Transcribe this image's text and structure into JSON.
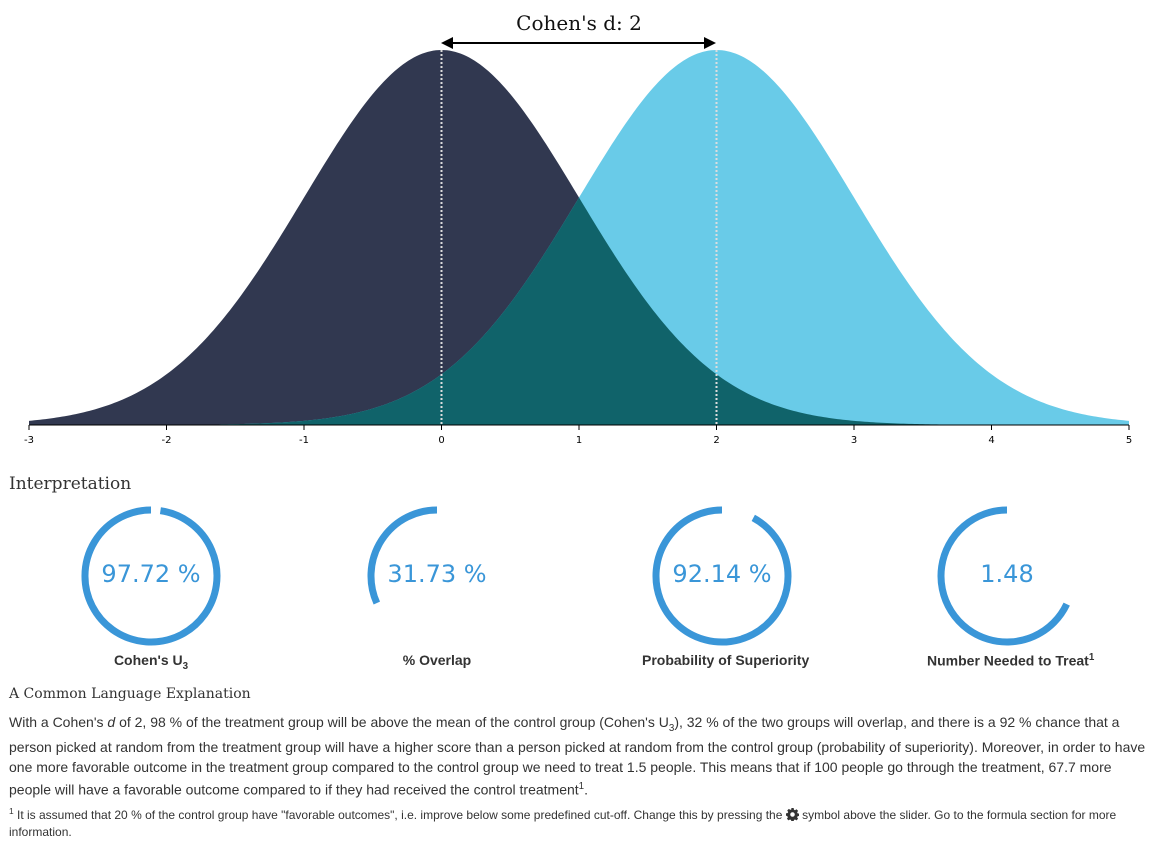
{
  "chart_data": {
    "type": "area",
    "title": "Cohen's d: 2",
    "xlim": [
      -3,
      5
    ],
    "ticks": [
      "-3",
      "-2",
      "-1",
      "0",
      "1",
      "2",
      "3",
      "4",
      "5"
    ],
    "series": [
      {
        "mean": 0,
        "sd": 1,
        "color": "#313850"
      },
      {
        "mean": 2,
        "sd": 1,
        "color": "#69cbe8"
      }
    ],
    "overlap_color": "#10636a",
    "mean_line_color": "#dddddd"
  },
  "interpretation": {
    "title": "Interpretation",
    "gauges": [
      {
        "value_text": "97.72 %",
        "label": "Cohen's U",
        "sub": "3",
        "sup": "",
        "fraction": 0.9772
      },
      {
        "value_text": "31.73 %",
        "label": "% Overlap",
        "sub": "",
        "sup": "",
        "fraction": 0.3173
      },
      {
        "value_text": "92.14 %",
        "label": "Probability of Superiority",
        "sub": "",
        "sup": "",
        "fraction": 0.9214
      },
      {
        "value_text": "1.48",
        "label": "Number Needed to Treat",
        "sub": "",
        "sup": "1",
        "fraction": 0.68
      }
    ],
    "gauge_color": "#3a96d8"
  },
  "explanation": {
    "title": "A Common Language Explanation",
    "p1": "With a Cohen's ",
    "d": "d",
    "p2": " of 2, 98 % of the treatment group will be above the mean of the control group (Cohen's U",
    "u_sub": "3",
    "p3": "), 32 % of the two groups will overlap, and there is a 92 % chance that a person picked at random from the treatment group will have a higher score than a person picked at random from the control group (probability of superiority). Moreover, in order to have one more favorable outcome in the treatment group compared to the control group we need to treat 1.5 people. This means that if 100 people go through the treatment, 67.7 more people will have a favorable outcome compared to if they had received the control treatment",
    "p3_sup": "1",
    "p4": "."
  },
  "footnote": {
    "sup": "1",
    "text1": " It is assumed that 20 % of the control group have \"favorable outcomes\", i.e. improve below some predefined cut-off. Change this by pressing the ",
    "icon": "gear-icon",
    "text2": " symbol above the slider. Go to the formula section for more information."
  }
}
